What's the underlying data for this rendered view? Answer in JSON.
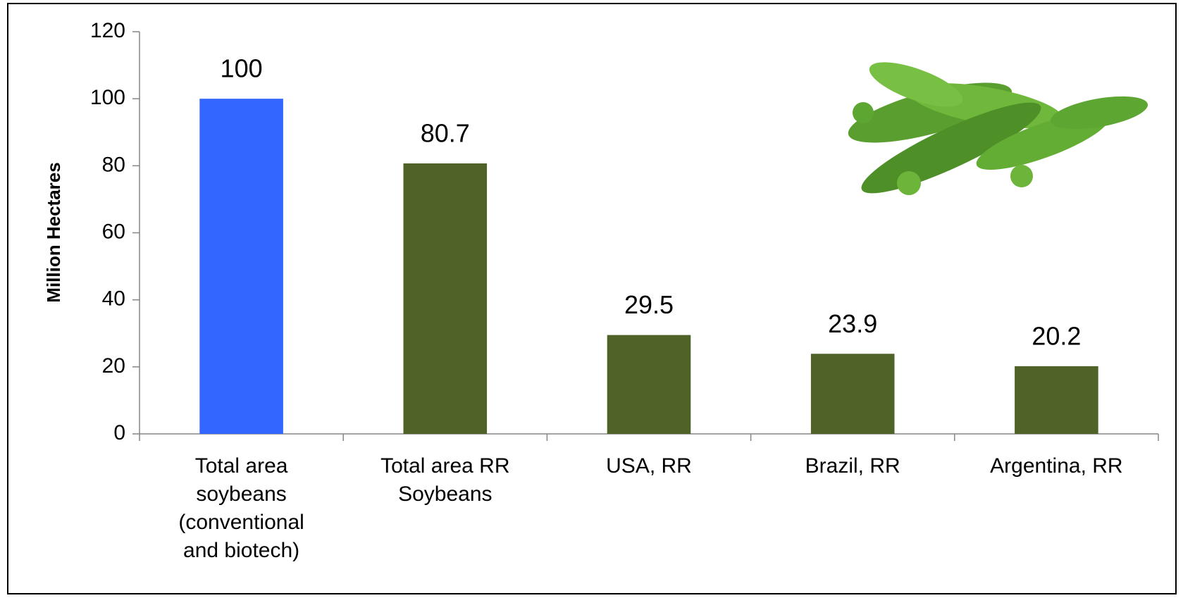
{
  "chart_data": {
    "type": "bar",
    "y_label": "Million Hectares",
    "categories": [
      "Total area soybeans (conventional and biotech)",
      "Total area RR Soybeans",
      "USA, RR",
      "Brazil, RR",
      "Argentina, RR"
    ],
    "values": [
      100,
      80.7,
      29.5,
      23.9,
      20.2
    ],
    "colors": [
      "#3366ff",
      "#4f6228",
      "#4f6228",
      "#4f6228",
      "#4f6228"
    ],
    "ylim": [
      0,
      120
    ],
    "yticks": [
      0,
      20,
      40,
      60,
      80,
      100,
      120
    ]
  }
}
